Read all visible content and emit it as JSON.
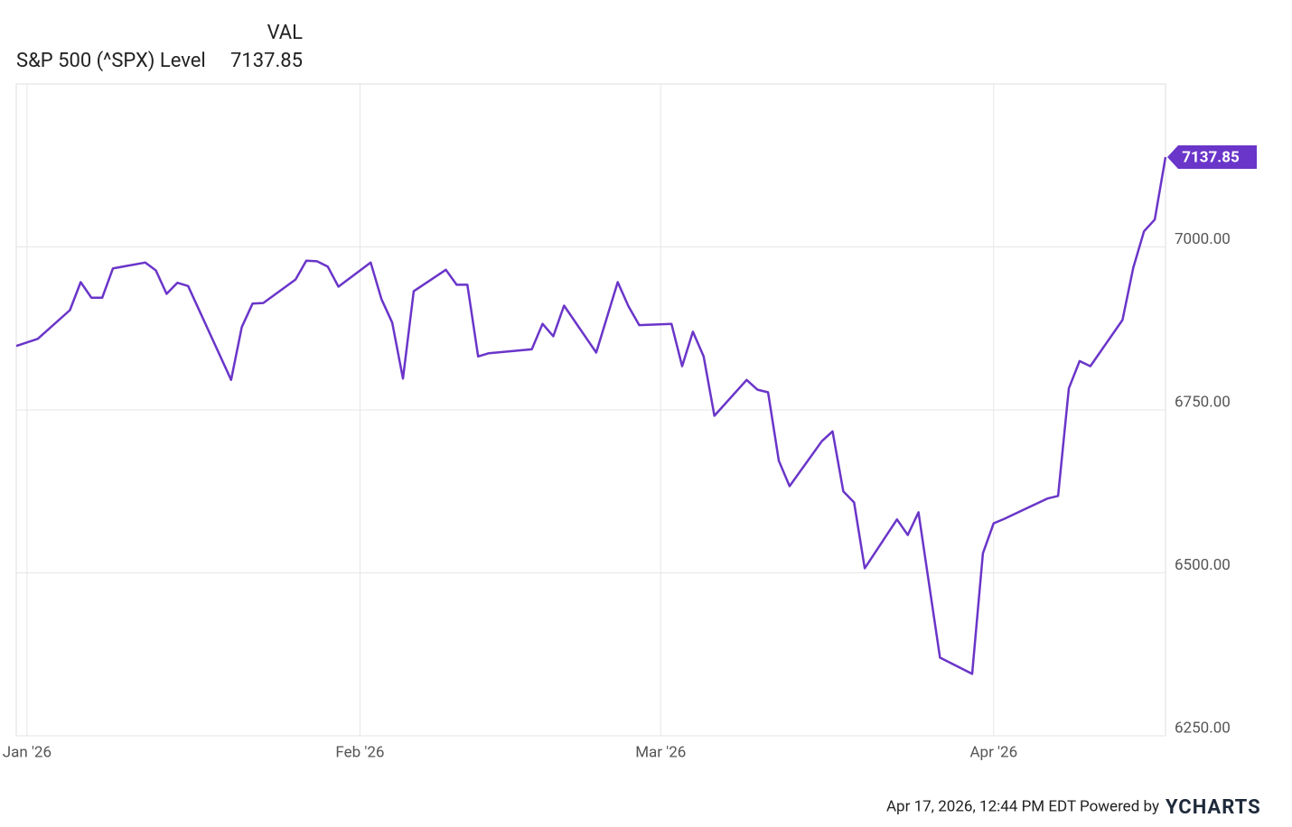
{
  "chart_data": {
    "type": "line",
    "column_header": "VAL",
    "footer": "Apr 17, 2026, 12:44 PM EDT Powered by",
    "logo": "YCHARTS",
    "x": [
      "2025-12-31",
      "2026-01-02",
      "2026-01-05",
      "2026-01-06",
      "2026-01-07",
      "2026-01-08",
      "2026-01-09",
      "2026-01-12",
      "2026-01-13",
      "2026-01-14",
      "2026-01-15",
      "2026-01-16",
      "2026-01-20",
      "2026-01-21",
      "2026-01-22",
      "2026-01-23",
      "2026-01-26",
      "2026-01-27",
      "2026-01-28",
      "2026-01-29",
      "2026-01-30",
      "2026-02-02",
      "2026-02-03",
      "2026-02-04",
      "2026-02-05",
      "2026-02-06",
      "2026-02-09",
      "2026-02-10",
      "2026-02-11",
      "2026-02-12",
      "2026-02-13",
      "2026-02-17",
      "2026-02-18",
      "2026-02-19",
      "2026-02-20",
      "2026-02-23",
      "2026-02-24",
      "2026-02-25",
      "2026-02-26",
      "2026-02-27",
      "2026-03-02",
      "2026-03-03",
      "2026-03-04",
      "2026-03-05",
      "2026-03-06",
      "2026-03-09",
      "2026-03-10",
      "2026-03-11",
      "2026-03-12",
      "2026-03-13",
      "2026-03-16",
      "2026-03-17",
      "2026-03-18",
      "2026-03-19",
      "2026-03-20",
      "2026-03-23",
      "2026-03-24",
      "2026-03-25",
      "2026-03-26",
      "2026-03-27",
      "2026-03-30",
      "2026-03-31",
      "2026-04-01",
      "2026-04-02",
      "2026-04-06",
      "2026-04-07",
      "2026-04-08",
      "2026-04-09",
      "2026-04-10",
      "2026-04-13",
      "2026-04-14",
      "2026-04-15",
      "2026-04-16",
      "2026-04-17"
    ],
    "series": [
      {
        "name": "S&P 500 (^SPX) Level",
        "color": "#6a35c9",
        "values": [
          6848,
          6859,
          6903,
          6946,
          6922,
          6922,
          6967,
          6976,
          6964,
          6928,
          6945,
          6940,
          6796,
          6877,
          6913,
          6914,
          6950,
          6979,
          6978,
          6970,
          6939,
          6976,
          6920,
          6884,
          6798,
          6932,
          6965,
          6942,
          6942,
          6832,
          6837,
          6843,
          6882,
          6863,
          6910,
          6838,
          6892,
          6946,
          6909,
          6880,
          6882,
          6817,
          6870,
          6832,
          6741,
          6796,
          6781,
          6777,
          6672,
          6633,
          6702,
          6717,
          6625,
          6608,
          6507,
          6582,
          6558,
          6593,
          6481,
          6370,
          6345,
          6530,
          6576,
          6583,
          6614,
          6618,
          6783,
          6825,
          6817,
          6888,
          6968,
          7024,
          7042,
          7137.85
        ]
      }
    ],
    "xlim": [
      "2025-12-31",
      "2026-04-17"
    ],
    "xticks": [
      {
        "value": "2026-01-01",
        "label": "Jan '26"
      },
      {
        "value": "2026-02-01",
        "label": "Feb '26"
      },
      {
        "value": "2026-03-01",
        "label": "Mar '26"
      },
      {
        "value": "2026-04-01",
        "label": "Apr '26"
      }
    ],
    "ylim": [
      6250,
      7250
    ],
    "yticks": [
      {
        "value": 6250,
        "label": "6250.00"
      },
      {
        "value": 6500,
        "label": "6500.00"
      },
      {
        "value": 6750,
        "label": "6750.00"
      },
      {
        "value": 7000,
        "label": "7000.00"
      }
    ],
    "grid": true
  }
}
